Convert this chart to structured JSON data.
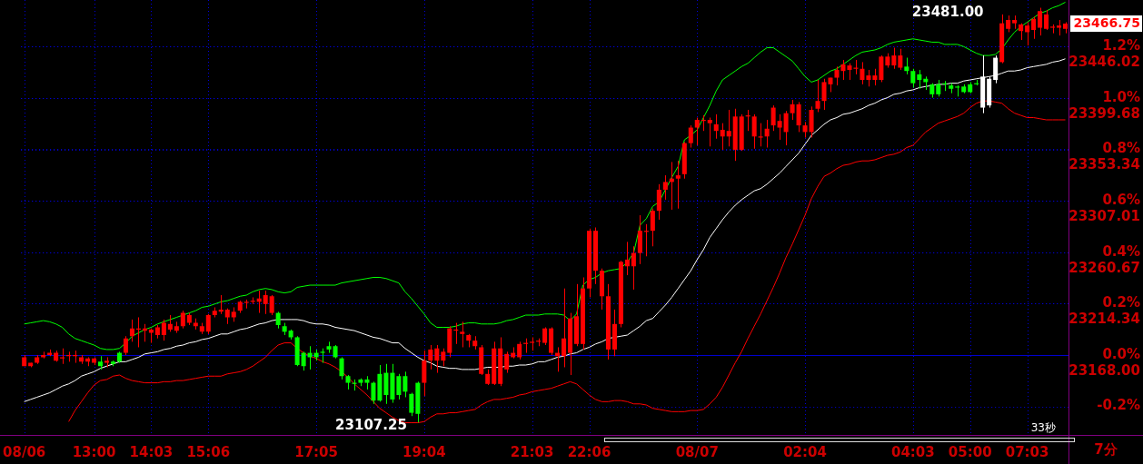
{
  "chart_data": {
    "type": "candlestick",
    "categories": [
      "08/06",
      null,
      null,
      null,
      null,
      null,
      null,
      null,
      null,
      null,
      null,
      "13:00",
      null,
      null,
      null,
      null,
      null,
      null,
      null,
      null,
      "14:03",
      null,
      null,
      null,
      null,
      null,
      null,
      null,
      null,
      "15:06",
      null,
      null,
      null,
      null,
      null,
      null,
      null,
      null,
      null,
      null,
      null,
      null,
      null,
      null,
      null,
      null,
      "17:05",
      null,
      null,
      null,
      null,
      null,
      null,
      null,
      null,
      null,
      null,
      null,
      null,
      null,
      null,
      null,
      null,
      "19:04",
      null,
      null,
      null,
      null,
      null,
      null,
      null,
      null,
      null,
      null,
      null,
      null,
      null,
      null,
      null,
      null,
      "21:03",
      null,
      null,
      null,
      null,
      null,
      null,
      null,
      null,
      "22:06",
      null,
      null,
      null,
      null,
      null,
      null,
      null,
      null,
      null,
      null,
      null,
      null,
      null,
      null,
      null,
      null,
      "08/07",
      null,
      null,
      null,
      null,
      null,
      null,
      null,
      null,
      null,
      null,
      null,
      null,
      null,
      null,
      null,
      null,
      "02:04",
      null,
      null,
      null,
      null,
      null,
      null,
      null,
      null,
      null,
      null,
      null,
      null,
      null,
      null,
      null,
      null,
      "04:03",
      null,
      null,
      null,
      null,
      null,
      null,
      null,
      null,
      "05:00",
      null,
      null,
      null,
      null,
      null,
      null,
      null,
      null,
      "07:03",
      null,
      null,
      null,
      null,
      null,
      null
    ],
    "series": [
      {
        "ohlc": [
          [
            23158,
            23168,
            23158,
            23166
          ],
          [
            23158,
            23161,
            23157,
            23161
          ],
          [
            23161,
            23168,
            23160,
            23166
          ],
          [
            23166,
            23171,
            23165,
            23168
          ],
          [
            23168,
            23173,
            23167,
            23170
          ],
          [
            23163,
            23172,
            23162,
            23170
          ],
          [
            23165,
            23174,
            23160,
            23166
          ],
          [
            23167,
            23171,
            23162,
            23168
          ],
          [
            23167,
            23172,
            23161,
            23168
          ],
          [
            23162,
            23168,
            23160,
            23166
          ],
          [
            23162,
            23166,
            23158,
            23165
          ],
          [
            23161,
            23166,
            23159,
            23165
          ],
          [
            23162,
            23167,
            23155,
            23158
          ],
          [
            23161,
            23166,
            23157,
            23163
          ],
          [
            23162,
            23163,
            23158,
            23160
          ],
          [
            23170,
            23171,
            23161,
            23162
          ],
          [
            23170,
            23185,
            23168,
            23183
          ],
          [
            23185,
            23200,
            23180,
            23192
          ],
          [
            23191,
            23202,
            23175,
            23192
          ],
          [
            23190,
            23196,
            23180,
            23192
          ],
          [
            23188,
            23192,
            23179,
            23191
          ],
          [
            23186,
            23195,
            23183,
            23193
          ],
          [
            23186,
            23200,
            23181,
            23197
          ],
          [
            23191,
            23204,
            23189,
            23196
          ],
          [
            23190,
            23198,
            23188,
            23194
          ],
          [
            23194,
            23208,
            23192,
            23206
          ],
          [
            23197,
            23206,
            23195,
            23204
          ],
          [
            23194,
            23201,
            23191,
            23197
          ],
          [
            23189,
            23197,
            23187,
            23194
          ],
          [
            23189,
            23205,
            23187,
            23204
          ],
          [
            23204,
            23211,
            23202,
            23208
          ],
          [
            23207,
            23222,
            23205,
            23209
          ],
          [
            23202,
            23210,
            23196,
            23209
          ],
          [
            23202,
            23211,
            23198,
            23207
          ],
          [
            23208,
            23217,
            23206,
            23216
          ],
          [
            23215,
            23218,
            23210,
            23216
          ],
          [
            23216,
            23220,
            23214,
            23217
          ],
          [
            23216,
            23226,
            23206,
            23219
          ],
          [
            23214,
            23226,
            23205,
            23222
          ],
          [
            23206,
            23222,
            23204,
            23221
          ],
          [
            23206,
            23207,
            23192,
            23195
          ],
          [
            23194,
            23197,
            23186,
            23189
          ],
          [
            23190,
            23191,
            23182,
            23184
          ],
          [
            23184,
            23185,
            23158,
            23159
          ],
          [
            23170,
            23171,
            23154,
            23158
          ],
          [
            23170,
            23176,
            23155,
            23166
          ],
          [
            23170,
            23173,
            23163,
            23166
          ],
          [
            23171,
            23174,
            23161,
            23170
          ],
          [
            23176,
            23180,
            23170,
            23173
          ],
          [
            23176,
            23177,
            23165,
            23166
          ],
          [
            23165,
            23166,
            23146,
            23149
          ],
          [
            23149,
            23150,
            23137,
            23143
          ],
          [
            23143,
            23146,
            23136,
            23142
          ],
          [
            23146,
            23147,
            23140,
            23143
          ],
          [
            23146,
            23149,
            23137,
            23143
          ],
          [
            23143,
            23144,
            23124,
            23127
          ],
          [
            23151,
            23159,
            23126,
            23127
          ],
          [
            23152,
            23160,
            23124,
            23132
          ],
          [
            23152,
            23160,
            23125,
            23128
          ],
          [
            23149,
            23151,
            23128,
            23132
          ],
          [
            23149,
            23153,
            23130,
            23135
          ],
          [
            23133,
            23134,
            23113,
            23116
          ],
          [
            23143,
            23144,
            23107.25,
            23115
          ],
          [
            23143,
            23172,
            23131,
            23163
          ],
          [
            23163,
            23177,
            23155,
            23173
          ],
          [
            23163,
            23177,
            23152,
            23174
          ],
          [
            23163,
            23174,
            23158,
            23171
          ],
          [
            23170,
            23194,
            23166,
            23192
          ],
          [
            23190,
            23197,
            23178,
            23191
          ],
          [
            23187,
            23198,
            23175,
            23189
          ],
          [
            23181,
            23187,
            23175,
            23186
          ],
          [
            23176,
            23185,
            23173,
            23181
          ],
          [
            23151,
            23177,
            23150,
            23175
          ],
          [
            23142,
            23155,
            23141,
            23151
          ],
          [
            23142,
            23180,
            23141,
            23174
          ],
          [
            23142,
            23184,
            23140,
            23174
          ],
          [
            23155,
            23171,
            23152,
            23169
          ],
          [
            23166,
            23175,
            23165,
            23170
          ],
          [
            23166,
            23180,
            23164,
            23178
          ],
          [
            23178,
            23183,
            23170,
            23179
          ],
          [
            23179,
            23184,
            23172,
            23180
          ],
          [
            23180,
            23183,
            23176,
            23181
          ],
          [
            23179,
            23193,
            23177,
            23192
          ],
          [
            23170,
            23193,
            23168,
            23192
          ],
          [
            23167,
            23175,
            23153,
            23170
          ],
          [
            23167,
            23228,
            23157,
            23183
          ],
          [
            23170,
            23206,
            23150,
            23201
          ],
          [
            23178,
            23232,
            23176,
            23203
          ],
          [
            23178,
            23238,
            23173,
            23228
          ],
          [
            23228,
            23282,
            23220,
            23280
          ],
          [
            23244,
            23283,
            23232,
            23280
          ],
          [
            23221,
            23246,
            23209,
            23244
          ],
          [
            23173,
            23232,
            23164,
            23221
          ],
          [
            23173,
            23209,
            23167,
            23196
          ],
          [
            23196,
            23253,
            23193,
            23252
          ],
          [
            23248,
            23270,
            23240,
            23254
          ],
          [
            23248,
            23266,
            23227,
            23260
          ],
          [
            23260,
            23294,
            23250,
            23280
          ],
          [
            23279,
            23286,
            23257,
            23280
          ],
          [
            23280,
            23300,
            23266,
            23298
          ],
          [
            23298,
            23322,
            23290,
            23317
          ],
          [
            23317,
            23330,
            23308,
            23324
          ],
          [
            23324,
            23342,
            23299,
            23327
          ],
          [
            23327,
            23343,
            23300,
            23330
          ],
          [
            23331,
            23360,
            23327,
            23359
          ],
          [
            23359,
            23375,
            23355,
            23373
          ],
          [
            23373,
            23382,
            23357,
            23380
          ],
          [
            23379,
            23384,
            23370,
            23380
          ],
          [
            23377,
            23382,
            23356,
            23380
          ],
          [
            23370,
            23385,
            23363,
            23376
          ],
          [
            23365,
            23377,
            23353,
            23371
          ],
          [
            23365,
            23389,
            23356,
            23370
          ],
          [
            23353,
            23390,
            23343,
            23383
          ],
          [
            23353,
            23385,
            23352,
            23383
          ],
          [
            23383,
            23389,
            23370,
            23384
          ],
          [
            23365,
            23385,
            23354,
            23383
          ],
          [
            23364,
            23377,
            23356,
            23365
          ],
          [
            23365,
            23380,
            23355,
            23372
          ],
          [
            23375,
            23393,
            23370,
            23391
          ],
          [
            23373,
            23385,
            23362,
            23379
          ],
          [
            23369,
            23388,
            23357,
            23386
          ],
          [
            23386,
            23398,
            23380,
            23394
          ],
          [
            23375,
            23396,
            23369,
            23394
          ],
          [
            23369,
            23378,
            23364,
            23375
          ],
          [
            23369,
            23392,
            23364,
            23389
          ],
          [
            23390,
            23416,
            23387,
            23397
          ],
          [
            23397,
            23417,
            23389,
            23414
          ],
          [
            23412,
            23418,
            23405,
            23418
          ],
          [
            23418,
            23428,
            23411,
            23425
          ],
          [
            23424,
            23434,
            23416,
            23430
          ],
          [
            23425,
            23431,
            23416,
            23429
          ],
          [
            23426,
            23434,
            23421,
            23427
          ],
          [
            23416,
            23432,
            23412,
            23426
          ],
          [
            23416,
            23425,
            23410,
            23420
          ],
          [
            23416,
            23426,
            23411,
            23420
          ],
          [
            23416,
            23438,
            23414,
            23437
          ],
          [
            23429,
            23440,
            23427,
            23437
          ],
          [
            23429,
            23445,
            23426,
            23438
          ],
          [
            23427,
            23444,
            23425,
            23438
          ],
          [
            23428,
            23436,
            23421,
            23424
          ],
          [
            23424,
            23426,
            23409,
            23413
          ],
          [
            23421,
            23425,
            23408,
            23416
          ],
          [
            23417,
            23419,
            23407,
            23414
          ],
          [
            23412,
            23413,
            23400,
            23403
          ],
          [
            23412,
            23416,
            23401,
            23403
          ],
          [
            23413,
            23415,
            23406,
            23412
          ],
          [
            23411,
            23413,
            23404,
            23408
          ],
          [
            23410,
            23411,
            23401,
            23409
          ],
          [
            23410,
            23412,
            23404,
            23405
          ],
          [
            23412,
            23414,
            23404,
            23405
          ],
          [
            23413,
            23416,
            23411,
            23412
          ],
          null,
          null,
          null,
          [
            23432,
            23475,
            23431,
            23467
          ],
          [
            23462,
            23474,
            23459,
            23470
          ],
          [
            23467,
            23474,
            23462,
            23470
          ],
          [
            23460,
            23467,
            23452,
            23466
          ],
          [
            23459,
            23468,
            23447,
            23465
          ],
          [
            23461,
            23473,
            23453,
            23471
          ],
          [
            23463,
            23481,
            23456,
            23478
          ],
          [
            23462,
            23479,
            23461,
            23475
          ],
          [
            23463,
            23466,
            23458,
            23464
          ],
          [
            23463,
            23470,
            23456,
            23465
          ],
          [
            23462,
            23468,
            23458,
            23466.75
          ]
        ],
        "colors": [
          "#ff0000",
          "#ff0000",
          "#ff0000",
          "#ff0000",
          "#ff0000",
          "#ff0000",
          "#ff0000",
          "#ff0000",
          "#ff0000",
          "#ff0000",
          "#ff0000",
          "#ff0000",
          "#00ff00",
          "#ff0000",
          "#00ff00",
          "#00ff00",
          "#ff0000",
          "#ff0000",
          "#ff0000",
          "#ff0000",
          "#ff0000",
          "#ff0000",
          "#ff0000",
          "#ff0000",
          "#ff0000",
          "#ff0000",
          "#ff0000",
          "#ff0000",
          "#ff0000",
          "#ff0000",
          "#ff0000",
          "#ff0000",
          "#ff0000",
          "#ff0000",
          "#ff0000",
          "#ff0000",
          "#ff0000",
          "#ff0000",
          "#ff0000",
          "#ff0000",
          "#00ff00",
          "#00ff00",
          "#00ff00",
          "#00ff00",
          "#00ff00",
          "#00ff00",
          "#00ff00",
          "#00ff00",
          "#00ff00",
          "#00ff00",
          "#00ff00",
          "#00ff00",
          "#00ff00",
          "#00ff00",
          "#00ff00",
          "#00ff00",
          "#00ff00",
          "#00ff00",
          "#00ff00",
          "#00ff00",
          "#00ff00",
          "#00ff00",
          "#00ff00",
          "#ff0000",
          "#ff0000",
          "#ff0000",
          "#ff0000",
          "#ff0000",
          "#ff0000",
          "#ff0000",
          "#ff0000",
          "#ff0000",
          "#ff0000",
          "#ff0000",
          "#ff0000",
          "#ff0000",
          "#ff0000",
          "#ff0000",
          "#ff0000",
          "#ff0000",
          "#ff0000",
          "#ff0000",
          "#ff0000",
          "#ff0000",
          "#ff0000",
          "#ff0000",
          "#ff0000",
          "#ff0000",
          "#ff0000",
          "#ff0000",
          "#ff0000",
          "#ff0000",
          "#ff0000",
          "#ff0000",
          "#ff0000",
          "#ff0000",
          "#ff0000",
          "#ff0000",
          "#ff0000",
          "#ff0000",
          "#ff0000",
          "#ff0000",
          "#ff0000",
          "#ff0000",
          "#ff0000",
          "#ff0000",
          "#ff0000",
          "#ff0000",
          "#ff0000",
          "#ff0000",
          "#ff0000",
          "#ff0000",
          "#ff0000",
          "#ff0000",
          "#ff0000",
          "#ff0000",
          "#ff0000",
          "#ff0000",
          "#ff0000",
          "#ff0000",
          "#ff0000",
          "#ff0000",
          "#ff0000",
          "#ff0000",
          "#ff0000",
          "#ff0000",
          "#ff0000",
          "#ff0000",
          "#ff0000",
          "#ff0000",
          "#ff0000",
          "#ff0000",
          "#ff0000",
          "#ff0000",
          "#ff0000",
          "#ff0000",
          "#ff0000",
          "#ff0000",
          "#ff0000",
          "#00ff00",
          "#00ff00",
          "#00ff00",
          "#00ff00",
          "#00ff00",
          "#00ff00",
          "#00ff00",
          "#00ff00",
          "#00ff00",
          "#00ff00",
          "#00ff00",
          "#00ff00",
          null,
          null,
          null,
          "#ff0000",
          "#ff0000",
          "#ff0000",
          "#ff0000",
          "#ff0000",
          "#ff0000",
          "#ff0000",
          "#ff0000",
          "#ff0000",
          "#ff0000",
          "#ff0000"
        ]
      },
      {
        "color": "#ffffff",
        "ohlc": [
          null,
          null,
          null,
          null,
          null,
          null,
          null,
          null,
          null,
          null,
          null,
          null,
          null,
          null,
          null,
          null,
          null,
          null,
          null,
          null,
          null,
          null,
          null,
          null,
          null,
          null,
          null,
          null,
          null,
          null,
          null,
          null,
          null,
          null,
          null,
          null,
          null,
          null,
          null,
          null,
          null,
          null,
          null,
          null,
          null,
          null,
          null,
          null,
          null,
          null,
          null,
          null,
          null,
          null,
          null,
          null,
          null,
          null,
          null,
          null,
          null,
          null,
          null,
          null,
          null,
          null,
          null,
          null,
          null,
          null,
          null,
          null,
          null,
          null,
          null,
          null,
          null,
          null,
          null,
          null,
          null,
          null,
          null,
          null,
          null,
          null,
          null,
          null,
          null,
          null,
          null,
          null,
          null,
          null,
          null,
          null,
          null,
          null,
          null,
          null,
          null,
          null,
          null,
          null,
          null,
          null,
          null,
          null,
          null,
          null,
          null,
          null,
          null,
          null,
          null,
          null,
          null,
          null,
          null,
          null,
          null,
          null,
          null,
          null,
          null,
          null,
          null,
          null,
          null,
          null,
          null,
          null,
          null,
          null,
          null,
          null,
          null,
          null,
          null,
          null,
          null,
          null,
          null,
          null,
          null,
          null,
          null,
          null,
          null,
          null,
          null,
          [
            23419,
            23438,
            23386,
            23391
          ],
          [
            23417,
            23419,
            23391,
            23393
          ],
          [
            23436,
            23438,
            23413,
            23416
          ],
          null,
          null,
          null,
          null,
          null,
          null,
          null,
          null,
          null,
          null,
          null
        ]
      },
      {
        "type": "line",
        "color": "#00ff00",
        "values": [
          23196,
          23197,
          23198,
          23199,
          23198,
          23196,
          23193,
          23187,
          23183,
          23181,
          23179,
          23177,
          23174,
          23173,
          23173,
          23174,
          23179,
          23185,
          23188,
          23191,
          23193,
          23196,
          23198,
          23200,
          23202,
          23204,
          23206,
          23208,
          23211,
          23212,
          23214,
          23216,
          23217,
          23219,
          23221,
          23222,
          23225,
          23227,
          23228,
          23227,
          23225,
          23224,
          23225,
          23229,
          23230,
          23231,
          23231,
          23231,
          23231,
          23231,
          23233,
          23234,
          23235,
          23236,
          23237,
          23238,
          23238,
          23237,
          23235,
          23233,
          23225,
          23219,
          23212,
          23205,
          23197,
          23193,
          23193,
          23193,
          23194,
          23196,
          23197,
          23197,
          23196,
          23196,
          23196,
          23197,
          23199,
          23200,
          23202,
          23204,
          23204,
          23204,
          23205,
          23205,
          23205,
          23204,
          23199,
          23205,
          23231,
          23236,
          23238,
          23242,
          23244,
          23245,
          23246,
          23252,
          23260,
          23285,
          23291,
          23302,
          23306,
          23317,
          23328,
          23338,
          23362,
          23366,
          23371,
          23382,
          23393,
          23406,
          23416,
          23420,
          23424,
          23428,
          23431,
          23436,
          23441,
          23445,
          23445,
          23441,
          23437,
          23433,
          23426,
          23419,
          23414,
          23416,
          23420,
          23424,
          23426,
          23430,
          23434,
          23438,
          23441,
          23442,
          23443,
          23445,
          23448,
          23450,
          23451,
          23452,
          23453,
          23452,
          23451,
          23450,
          23450,
          23448,
          23448,
          23448,
          23446,
          23443,
          23440,
          23438,
          23438,
          23439,
          23444,
          23452,
          23459,
          23464,
          23468,
          23472,
          23476,
          23478,
          23481,
          23483,
          23486
        ]
      },
      {
        "type": "line",
        "color": "#ffffff",
        "values": [
          23126,
          23128,
          23130,
          23132,
          23134,
          23137,
          23140,
          23142,
          23145,
          23149,
          23151,
          23153,
          23156,
          23158,
          23160,
          23162,
          23162,
          23164,
          23166,
          23169,
          23170,
          23171,
          23173,
          23174,
          23176,
          23177,
          23179,
          23180,
          23182,
          23183,
          23185,
          23187,
          23187,
          23189,
          23191,
          23192,
          23194,
          23196,
          23197,
          23199,
          23200,
          23200,
          23200,
          23200,
          23199,
          23197,
          23196,
          23196,
          23195,
          23193,
          23192,
          23191,
          23190,
          23188,
          23186,
          23184,
          23183,
          23181,
          23179,
          23179,
          23174,
          23170,
          23166,
          23163,
          23161,
          23158,
          23157,
          23156,
          23156,
          23155,
          23155,
          23155,
          23156,
          23157,
          23157,
          23157,
          23158,
          23158,
          23159,
          23159,
          23160,
          23162,
          23162,
          23164,
          23166,
          23167,
          23169,
          23170,
          23173,
          23175,
          23178,
          23180,
          23183,
          23184,
          23185,
          23186,
          23190,
          23194,
          23199,
          23201,
          23207,
          23213,
          23220,
          23228,
          23236,
          23244,
          23254,
          23263,
          23274,
          23282,
          23290,
          23297,
          23303,
          23308,
          23312,
          23316,
          23318,
          23322,
          23327,
          23332,
          23338,
          23344,
          23350,
          23358,
          23366,
          23371,
          23376,
          23380,
          23382,
          23385,
          23386,
          23388,
          23390,
          23393,
          23395,
          23398,
          23400,
          23403,
          23404,
          23406,
          23407,
          23409,
          23410,
          23411,
          23412,
          23412,
          23413,
          23413,
          23415,
          23416,
          23417,
          23418,
          23419,
          23420,
          23422,
          23424,
          23424,
          23425,
          23427,
          23428,
          23429,
          23430,
          23432,
          23433,
          23435
        ]
      },
      {
        "type": "line",
        "color": "#ff0000",
        "values": [
          null,
          null,
          null,
          null,
          null,
          null,
          null,
          23108,
          23118,
          23126,
          23134,
          23141,
          23145,
          23146,
          23149,
          23150,
          23147,
          23145,
          23144,
          23143,
          23143,
          23143,
          23144,
          23144,
          23145,
          23145,
          23146,
          23147,
          23148,
          23149,
          23149,
          23149,
          23151,
          23152,
          23153,
          23155,
          23158,
          23162,
          23166,
          23172,
          23177,
          23179,
          23179,
          23174,
          23170,
          23167,
          23165,
          23162,
          23160,
          23157,
          23153,
          23148,
          23142,
          23137,
          23132,
          23126,
          23120,
          23116,
          23112,
          23109,
          23107,
          23107,
          23107,
          23108,
          23112,
          23115,
          23115,
          23116,
          23116,
          23117,
          23118,
          23119,
          23123,
          23126,
          23128,
          23128,
          23129,
          23130,
          23132,
          23133,
          23135,
          23136,
          23137,
          23138,
          23140,
          23142,
          23144,
          23142,
          23137,
          23132,
          23128,
          23126,
          23126,
          23127,
          23127,
          23126,
          23124,
          23124,
          23123,
          23120,
          23119,
          23118,
          23117,
          23117,
          23117,
          23118,
          23118,
          23119,
          23124,
          23130,
          23139,
          23150,
          23161,
          23171,
          23183,
          23194,
          23205,
          23217,
          23229,
          23242,
          23256,
          23268,
          23281,
          23294,
          23309,
          23320,
          23329,
          23332,
          23336,
          23339,
          23340,
          23342,
          23343,
          23343,
          23344,
          23346,
          23348,
          23349,
          23351,
          23355,
          23357,
          23363,
          23369,
          23373,
          23377,
          23379,
          23381,
          23383,
          23386,
          23391,
          23395,
          23397,
          23397,
          23396,
          23395,
          23390,
          23386,
          23384,
          23382,
          23382,
          23381,
          23380,
          23380,
          23380,
          23380
        ]
      }
    ],
    "ylim": [
      23096,
      23488
    ],
    "yticks": [
      {
        "value": 23168,
        "label": "23168.00"
      },
      23214.34,
      23260.67,
      23307.01,
      23353.34,
      23399.68,
      23446.02
    ],
    "y2lim": [
      -0.311,
      1.381
    ],
    "y2ticks": [
      {
        "value": -0.2,
        "label": "-0.2%"
      },
      {
        "value": 0,
        "label": "0.0%"
      },
      {
        "value": 0.2,
        "label": "0.2%"
      },
      {
        "value": 0.4,
        "label": "0.4%"
      },
      {
        "value": 0.6,
        "label": "0.6%"
      },
      {
        "value": 0.8,
        "label": "0.8%"
      },
      {
        "value": 1,
        "label": "1.0%"
      },
      {
        "value": 1.2,
        "label": "1.2%"
      }
    ],
    "ref_lines": [
      {
        "axis": "y",
        "value": 23168,
        "color": "#0000cc"
      }
    ],
    "grid": true,
    "annotations": [
      "23481.00",
      "23107.25",
      "23466.75",
      "33秒",
      "7分"
    ]
  }
}
